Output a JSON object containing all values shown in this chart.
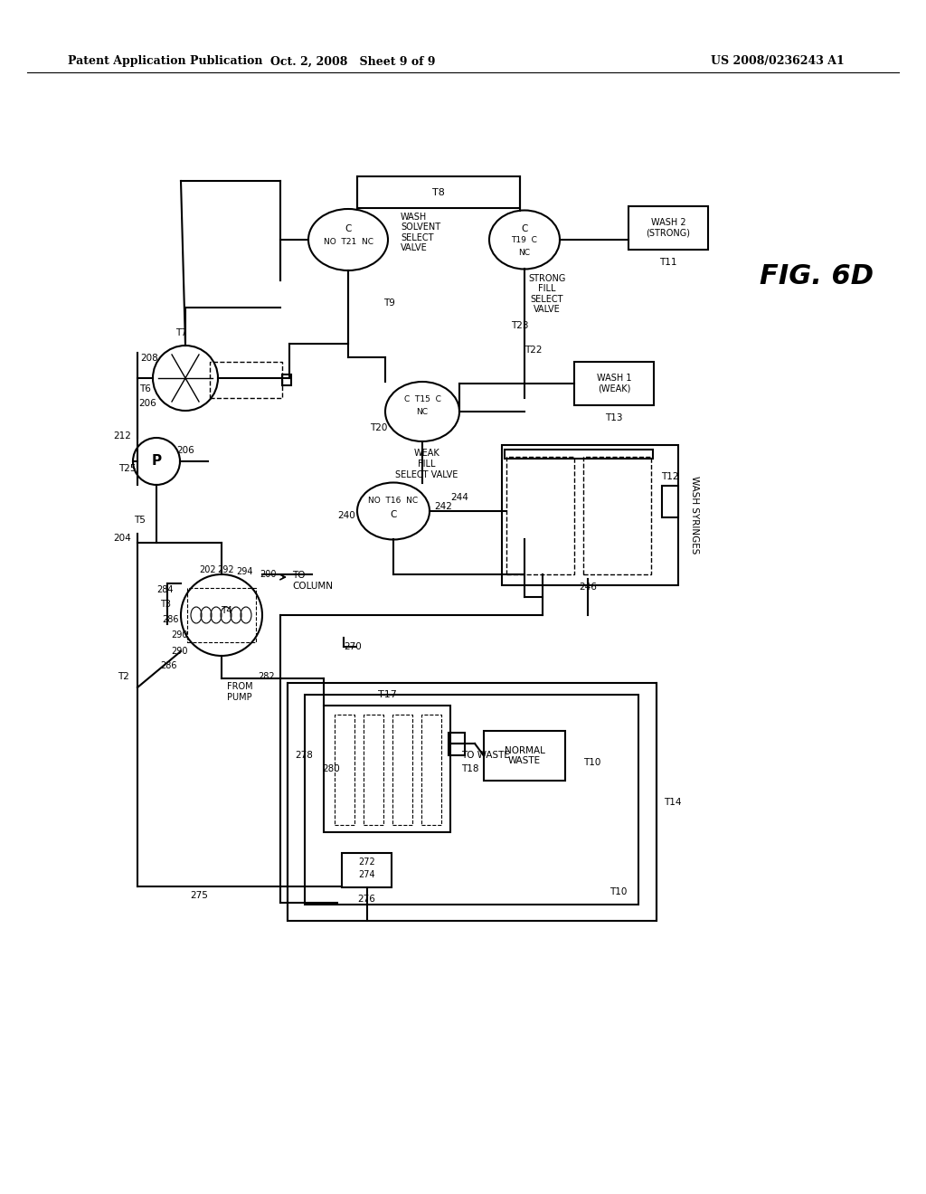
{
  "bg_color": "#ffffff",
  "header_left": "Patent Application Publication",
  "header_center": "Oct. 2, 2008   Sheet 9 of 9",
  "header_right": "US 2008/0236243 A1",
  "fig_label": "FIG. 6D",
  "line_color": "#000000",
  "text_color": "#000000",
  "lw_main": 1.5,
  "lw_thin": 1.0
}
